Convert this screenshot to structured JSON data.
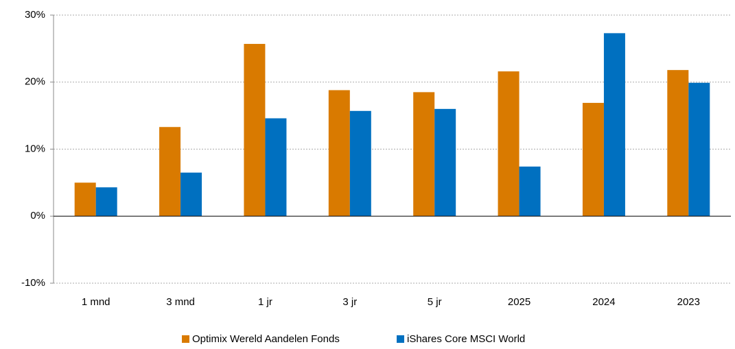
{
  "chart_data": {
    "type": "bar",
    "categories": [
      "1 mnd",
      "3 mnd",
      "1 jr",
      "3 jr",
      "5 jr",
      "2025",
      "2024",
      "2023"
    ],
    "series": [
      {
        "name": "Optimix Wereld Aandelen Fonds",
        "color": "#d97a00",
        "values": [
          5.0,
          13.3,
          25.7,
          18.8,
          18.5,
          21.6,
          16.9,
          21.8
        ]
      },
      {
        "name": "iShares Core MSCI World",
        "color": "#0070c0",
        "values": [
          4.3,
          6.5,
          14.6,
          15.7,
          16.0,
          7.4,
          27.3,
          19.9
        ]
      }
    ],
    "ylim": [
      -10,
      30
    ],
    "yticks": [
      {
        "value": -10,
        "label": "-10%"
      },
      {
        "value": 0,
        "label": "0%"
      },
      {
        "value": 10,
        "label": "10%"
      },
      {
        "value": 20,
        "label": "20%"
      },
      {
        "value": 30,
        "label": "30%"
      }
    ],
    "grid": true,
    "legend": "bottom"
  }
}
